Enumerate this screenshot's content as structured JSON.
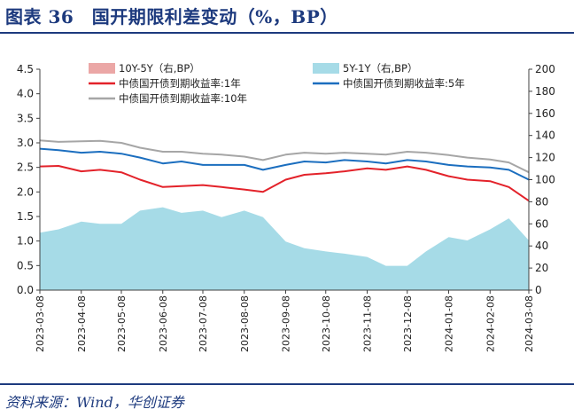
{
  "header": {
    "title": "图表 36　国开期限利差变动（%，BP）"
  },
  "footer": {
    "source": "资料来源：Wind，华创证券"
  },
  "colors": {
    "accent": "#1d3a7e",
    "rate_1y": "#e3222a",
    "rate_5y": "#1b6ebf",
    "rate_10y": "#a6a6a6",
    "spread_10y5y": "#eba7a6",
    "spread_5y1y": "#a6dbe7"
  },
  "chart_data": {
    "type": "line",
    "x": [
      "2023-03-08",
      "2023-03-22",
      "2023-04-08",
      "2023-04-22",
      "2023-05-08",
      "2023-05-22",
      "2023-06-08",
      "2023-06-22",
      "2023-07-08",
      "2023-07-22",
      "2023-08-08",
      "2023-08-22",
      "2023-09-08",
      "2023-09-22",
      "2023-10-08",
      "2023-10-22",
      "2023-11-08",
      "2023-11-22",
      "2023-12-08",
      "2023-12-22",
      "2024-01-08",
      "2024-01-22",
      "2024-02-08",
      "2024-02-22",
      "2024-03-08"
    ],
    "x_ticks": [
      "2023-03-08",
      "2023-04-08",
      "2023-05-08",
      "2023-06-08",
      "2023-07-08",
      "2023-08-08",
      "2023-09-08",
      "2023-10-08",
      "2023-11-08",
      "2023-12-08",
      "2024-01-08",
      "2024-02-08",
      "2024-03-08"
    ],
    "y_left": {
      "ylim": [
        0.0,
        4.5
      ],
      "ticks": [
        "0.0",
        "0.5",
        "1.0",
        "1.5",
        "2.0",
        "2.5",
        "3.0",
        "3.5",
        "4.0",
        "4.5"
      ]
    },
    "y_right": {
      "ylim": [
        0,
        200
      ],
      "ticks": [
        "0",
        "20",
        "40",
        "60",
        "80",
        "100",
        "120",
        "140",
        "160",
        "180",
        "200"
      ]
    },
    "series": [
      {
        "name": "中债国开债到期收益率:1年",
        "kind": "line",
        "axis": "left",
        "color": "#e3222a",
        "values": [
          2.52,
          2.53,
          2.42,
          2.45,
          2.4,
          2.25,
          2.1,
          2.12,
          2.14,
          2.1,
          2.05,
          2.0,
          2.25,
          2.35,
          2.38,
          2.42,
          2.48,
          2.45,
          2.52,
          2.45,
          2.32,
          2.25,
          2.22,
          2.1,
          1.82
        ]
      },
      {
        "name": "中债国开债到期收益率:5年",
        "kind": "line",
        "axis": "left",
        "color": "#1b6ebf",
        "values": [
          2.88,
          2.85,
          2.8,
          2.82,
          2.78,
          2.7,
          2.58,
          2.62,
          2.55,
          2.55,
          2.55,
          2.45,
          2.55,
          2.62,
          2.6,
          2.65,
          2.62,
          2.58,
          2.65,
          2.62,
          2.55,
          2.52,
          2.5,
          2.45,
          2.25
        ]
      },
      {
        "name": "中债国开债到期收益率:10年",
        "kind": "line",
        "axis": "left",
        "color": "#a6a6a6",
        "values": [
          3.05,
          3.02,
          3.03,
          3.04,
          3.0,
          2.9,
          2.82,
          2.82,
          2.78,
          2.76,
          2.72,
          2.65,
          2.76,
          2.8,
          2.78,
          2.8,
          2.78,
          2.76,
          2.82,
          2.8,
          2.75,
          2.7,
          2.66,
          2.6,
          2.4
        ]
      },
      {
        "name": "10Y-5Y（右,BP）",
        "kind": "area",
        "axis": "right",
        "color": "#eba7a6",
        "values": [
          17,
          20,
          20,
          21,
          22,
          22,
          24,
          23,
          24,
          24,
          20,
          20,
          20,
          19,
          18,
          18,
          16,
          16,
          15,
          16,
          20,
          20,
          18,
          18,
          15
        ]
      },
      {
        "name": "5Y-1Y（右,BP）",
        "kind": "area",
        "axis": "right",
        "color": "#a6dbe7",
        "values": [
          52,
          55,
          62,
          60,
          60,
          72,
          75,
          70,
          72,
          66,
          72,
          66,
          44,
          38,
          35,
          33,
          30,
          22,
          22,
          35,
          48,
          45,
          55,
          65,
          45
        ]
      }
    ]
  }
}
